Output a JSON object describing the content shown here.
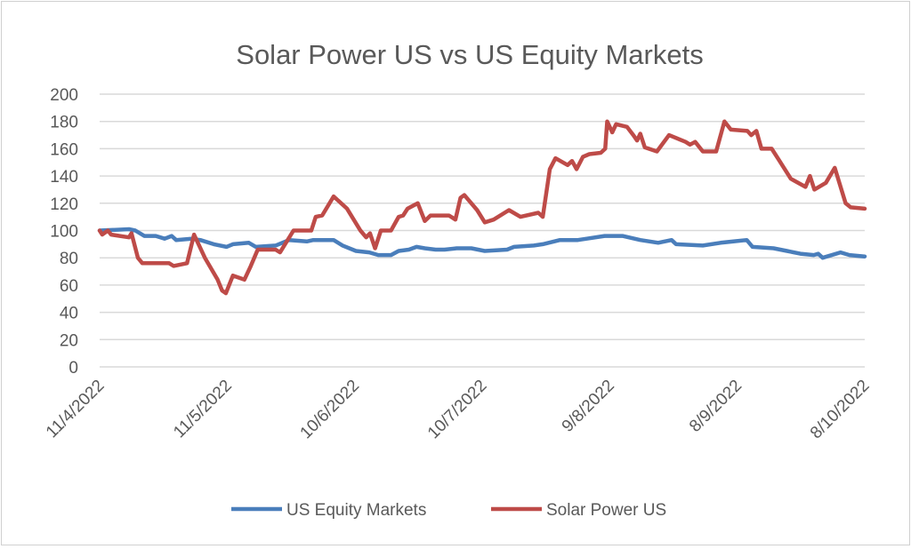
{
  "chart_data": {
    "type": "line",
    "title": "Solar Power US vs US Equity Markets",
    "xlabel": "",
    "ylabel": "",
    "ylim": [
      0,
      200
    ],
    "yticks": [
      0,
      20,
      40,
      60,
      80,
      100,
      120,
      140,
      160,
      180,
      200
    ],
    "xlim": [
      0,
      120
    ],
    "xticks": [
      {
        "x": 0,
        "label": "11/4/2022"
      },
      {
        "x": 20,
        "label": "11/5/2022"
      },
      {
        "x": 40,
        "label": "10/6/2022"
      },
      {
        "x": 60,
        "label": "10/7/2022"
      },
      {
        "x": 80,
        "label": "9/8/2022"
      },
      {
        "x": 100,
        "label": "8/9/2022"
      },
      {
        "x": 120,
        "label": "8/10/2022"
      }
    ],
    "grid": true,
    "legend": "bottom",
    "series": [
      {
        "name": "US Equity Markets",
        "color": "#4a7ebb",
        "x": [
          0,
          4.6,
          5.6,
          7,
          8.8,
          10.2,
          11.3,
          12,
          14.4,
          15.8,
          17.9,
          19.9,
          20.9,
          23.4,
          24.5,
          27.6,
          29.7,
          32.5,
          33.5,
          36.7,
          38.1,
          40.2,
          42.3,
          43.7,
          45.7,
          46.9,
          48.5,
          49.7,
          51,
          52.7,
          54.1,
          56,
          58.3,
          60.4,
          63.9,
          65,
          68.1,
          69.5,
          72.2,
          75,
          76.4,
          79.2,
          82,
          84.8,
          87.6,
          89.7,
          90.4,
          94.6,
          97.4,
          99.4,
          101.5,
          102.4,
          105.7,
          107.8,
          109.9,
          112,
          112.7,
          113.4,
          116.2,
          117.6,
          120
        ],
        "values": [
          100,
          101,
          100,
          96,
          96,
          94,
          96,
          93,
          94,
          93,
          90,
          88,
          90,
          91,
          88,
          89,
          93,
          92,
          93,
          93,
          89,
          85,
          84,
          82,
          82,
          85,
          86,
          88,
          87,
          86,
          86,
          87,
          87,
          85,
          86,
          88,
          89,
          90,
          93,
          93,
          94,
          96,
          96,
          93,
          91,
          93,
          90,
          89,
          91,
          92,
          93,
          88,
          87,
          85,
          83,
          82,
          83,
          80,
          84,
          82,
          81
        ]
      },
      {
        "name": "Solar Power US",
        "color": "#be4b48",
        "x": [
          0,
          0.4,
          1.3,
          1.8,
          4.6,
          5,
          6,
          6.7,
          10.9,
          11.6,
          13.7,
          14.8,
          16.5,
          18.5,
          19.2,
          19.8,
          20.9,
          22.7,
          23.7,
          24.8,
          27.6,
          28.3,
          30.4,
          33.2,
          33.9,
          34.9,
          36.7,
          38.8,
          40.9,
          41.8,
          42.4,
          43.2,
          44.1,
          45.7,
          46.9,
          47.6,
          48.3,
          49.9,
          51,
          51.9,
          54.8,
          55.8,
          56.6,
          57.2,
          59.2,
          60.4,
          61.8,
          64.2,
          66,
          68.8,
          69.5,
          70.6,
          71.5,
          73.4,
          74.1,
          74.8,
          75.8,
          76.8,
          78.6,
          79.3,
          79.6,
          80.4,
          81,
          82.7,
          83.7,
          84.3,
          84.8,
          85.5,
          87.4,
          89.3,
          91.9,
          92.6,
          93.4,
          94.6,
          96.7,
          98,
          99,
          101.6,
          102.2,
          103,
          103.8,
          105.4,
          106.5,
          108.4,
          110.7,
          111.4,
          112.1,
          113.9,
          115.3,
          117,
          117.8,
          120
        ],
        "values": [
          100,
          97,
          100,
          97,
          95,
          98,
          80,
          76,
          76,
          74,
          76,
          97,
          80,
          64,
          56,
          54,
          67,
          64,
          74,
          86,
          86,
          84,
          100,
          100,
          110,
          111,
          125,
          116,
          100,
          95,
          98,
          87,
          100,
          100,
          110,
          111,
          116,
          120,
          107,
          111,
          111,
          108,
          124,
          126,
          115,
          106,
          108,
          115,
          110,
          113,
          110,
          145,
          153,
          148,
          151,
          145,
          154,
          156,
          157,
          160,
          180,
          172,
          178,
          176,
          170,
          166,
          171,
          161,
          158,
          170,
          165,
          163,
          165,
          158,
          158,
          180,
          174,
          173,
          170,
          173,
          160,
          160,
          152,
          138,
          132,
          140,
          130,
          135,
          146,
          120,
          117,
          116
        ]
      }
    ]
  }
}
